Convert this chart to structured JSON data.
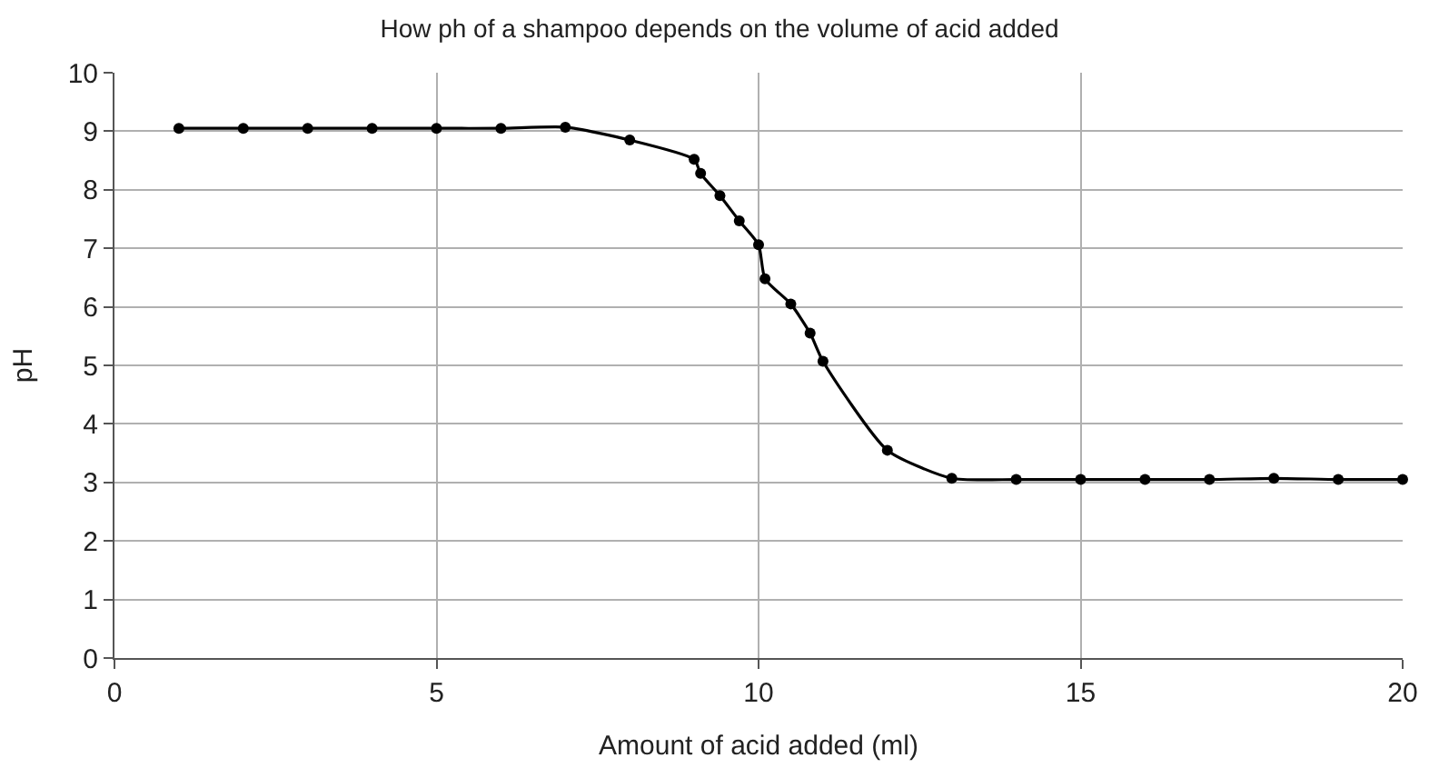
{
  "chart_data": {
    "type": "line",
    "title": "How ph of a shampoo depends on the volume of acid added",
    "xlabel": "Amount of acid added (ml)",
    "ylabel": "pH",
    "series": [
      {
        "color": "#000000",
        "x": [
          1,
          2,
          3,
          4,
          5,
          6,
          7,
          8,
          9,
          9.1,
          9.4,
          9.7,
          10,
          10.1,
          10.5,
          10.8,
          11,
          12,
          13,
          14,
          15,
          16,
          17,
          18,
          19,
          20
        ],
        "values": [
          9.05,
          9.05,
          9.05,
          9.05,
          9.05,
          9.05,
          9.07,
          8.85,
          8.52,
          8.28,
          7.9,
          7.47,
          7.06,
          6.48,
          6.05,
          5.55,
          5.07,
          3.55,
          3.07,
          3.05,
          3.05,
          3.05,
          3.05,
          3.07,
          3.05,
          3.05
        ]
      }
    ],
    "xlim": [
      0,
      20
    ],
    "xticks": [
      0,
      5,
      10,
      15,
      20
    ],
    "ylim": [
      0,
      10
    ],
    "yticks": [
      0,
      1,
      2,
      3,
      4,
      5,
      6,
      7,
      8,
      9,
      10
    ],
    "grid": true,
    "marker": "circle",
    "line_style": "solid"
  }
}
